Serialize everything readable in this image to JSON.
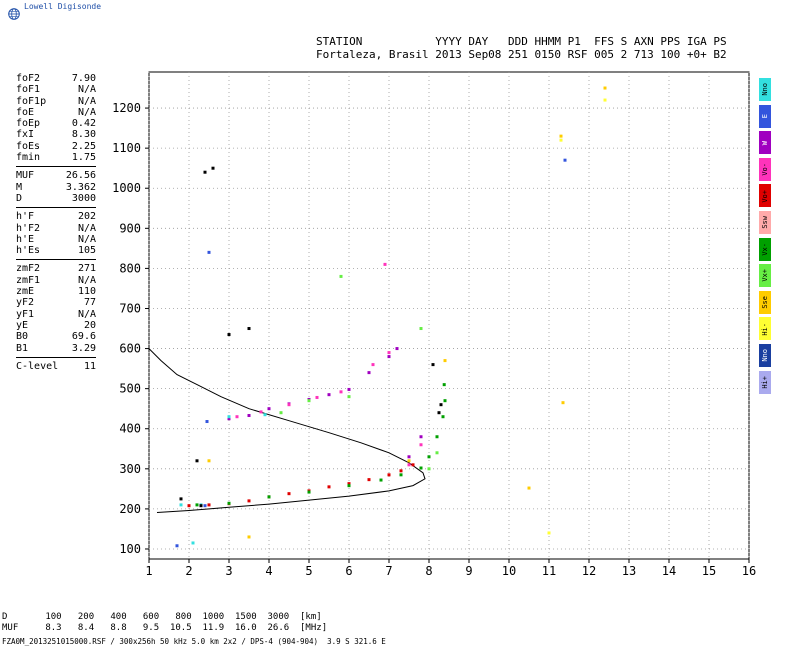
{
  "app": {
    "logo_text": "Lowell Digisonde",
    "logo_icon": "globe-icon"
  },
  "header": {
    "line1": "STATION           YYYY DAY   DDD HHMM P1  FFS S AXN PPS IGA PS",
    "line2": "Fortaleza, Brasil 2013 Sep08 251 0150 RSF 005 2 713 100 +0+ B2"
  },
  "params": [
    [
      {
        "k": "foF2",
        "v": "7.90"
      },
      {
        "k": "foF1",
        "v": "N/A"
      },
      {
        "k": "foF1p",
        "v": "N/A"
      },
      {
        "k": "foE",
        "v": "N/A"
      },
      {
        "k": "foEp",
        "v": "0.42"
      },
      {
        "k": "fxI",
        "v": "8.30"
      },
      {
        "k": "foEs",
        "v": "2.25"
      },
      {
        "k": "fmin",
        "v": "1.75"
      }
    ],
    [
      {
        "k": "MUF",
        "v": "26.56"
      },
      {
        "k": "M",
        "v": "3.362"
      },
      {
        "k": "D",
        "v": "3000"
      }
    ],
    [
      {
        "k": "h'F",
        "v": "202"
      },
      {
        "k": "h'F2",
        "v": "N/A"
      },
      {
        "k": "h'E",
        "v": "N/A"
      },
      {
        "k": "h'Es",
        "v": "105"
      }
    ],
    [
      {
        "k": "zmF2",
        "v": "271"
      },
      {
        "k": "zmF1",
        "v": "N/A"
      },
      {
        "k": "zmE",
        "v": "110"
      },
      {
        "k": "yF2",
        "v": "77"
      },
      {
        "k": "yF1",
        "v": "N/A"
      },
      {
        "k": "yE",
        "v": "20"
      },
      {
        "k": "B0",
        "v": "69.6"
      },
      {
        "k": "B1",
        "v": "3.29"
      }
    ],
    [
      {
        "k": "C-level",
        "v": "11"
      }
    ]
  ],
  "legend": [
    {
      "label": "Nno",
      "color": "#33e0e0"
    },
    {
      "label": "E",
      "color": "#3355dd"
    },
    {
      "label": "W",
      "color": "#a000c0"
    },
    {
      "label": "Vo-",
      "color": "#ff33bb"
    },
    {
      "label": "Vo+",
      "color": "#e00000"
    },
    {
      "label": "Ssw",
      "color": "#ffaaaa"
    },
    {
      "label": "Vx-",
      "color": "#00a000"
    },
    {
      "label": "Vx+",
      "color": "#66ee44"
    },
    {
      "label": "Sse",
      "color": "#ffcc00"
    },
    {
      "label": "Hi-",
      "color": "#ffff33"
    },
    {
      "label": "Nno",
      "color": "#1a3fa0"
    },
    {
      "label": "Hi+",
      "color": "#aaaaee"
    }
  ],
  "muf_table": {
    "d_label": "D",
    "d_values": [
      "100",
      "200",
      "400",
      "600",
      "800",
      "1000",
      "1500",
      "3000"
    ],
    "d_unit": "[km]",
    "m_label": "MUF",
    "m_values": [
      "8.3",
      "8.4",
      "8.8",
      "9.5",
      "10.5",
      "11.9",
      "16.0",
      "26.6"
    ],
    "m_unit": "[MHz]"
  },
  "footer": "FZA0M_2013251015000.RSF / 300x256h 50 kHz 5.0 km 2x2 / DPS-4 (904-904)  3.9 S 321.6 E",
  "chart_data": {
    "type": "scatter",
    "title": "",
    "xlabel": "",
    "ylabel": "",
    "xlim": [
      1,
      16
    ],
    "ylim": [
      75,
      1290
    ],
    "xticks": [
      1,
      2,
      3,
      4,
      5,
      6,
      7,
      8,
      9,
      10,
      11,
      12,
      13,
      14,
      15,
      16
    ],
    "yticks": [
      100,
      200,
      300,
      400,
      500,
      600,
      700,
      800,
      900,
      1000,
      1100,
      1200
    ],
    "grid": true,
    "profile": [
      [
        1,
        600
      ],
      [
        1.3,
        570
      ],
      [
        1.7,
        535
      ],
      [
        2.2,
        510
      ],
      [
        2.8,
        480
      ],
      [
        3.5,
        450
      ],
      [
        4.5,
        420
      ],
      [
        5.5,
        390
      ],
      [
        6.3,
        365
      ],
      [
        7,
        340
      ],
      [
        7.5,
        315
      ],
      [
        7.85,
        290
      ],
      [
        7.9,
        275
      ],
      [
        7.6,
        258
      ],
      [
        7,
        245
      ],
      [
        6,
        232
      ],
      [
        5,
        222
      ],
      [
        4,
        212
      ],
      [
        3,
        204
      ],
      [
        2,
        196
      ],
      [
        1.5,
        193
      ],
      [
        1.2,
        191
      ]
    ],
    "series": [
      {
        "color": "#e00000",
        "points": [
          [
            2.0,
            208
          ],
          [
            2.5,
            210
          ],
          [
            3,
            213
          ],
          [
            3.5,
            220
          ],
          [
            4,
            230
          ],
          [
            4.5,
            238
          ],
          [
            5,
            245
          ],
          [
            5.5,
            255
          ],
          [
            6,
            263
          ],
          [
            6.5,
            273
          ],
          [
            7,
            285
          ],
          [
            7.3,
            295
          ],
          [
            7.6,
            310
          ]
        ]
      },
      {
        "color": "#00a000",
        "points": [
          [
            2.2,
            210
          ],
          [
            3,
            214
          ],
          [
            4,
            230
          ],
          [
            5,
            242
          ],
          [
            6,
            258
          ],
          [
            6.8,
            272
          ],
          [
            7.3,
            285
          ],
          [
            7.8,
            302
          ],
          [
            8.0,
            330
          ],
          [
            8.2,
            380
          ],
          [
            8.35,
            430
          ],
          [
            8.4,
            470
          ],
          [
            8.38,
            510
          ]
        ]
      },
      {
        "color": "#a000c0",
        "points": [
          [
            3,
            425
          ],
          [
            3.5,
            433
          ],
          [
            4,
            450
          ],
          [
            4.5,
            462
          ],
          [
            5,
            473
          ],
          [
            5.5,
            485
          ],
          [
            6,
            498
          ],
          [
            6.5,
            540
          ],
          [
            7,
            580
          ],
          [
            7.2,
            600
          ],
          [
            7.5,
            330
          ],
          [
            7.8,
            380
          ]
        ]
      },
      {
        "color": "#ff33bb",
        "points": [
          [
            3.2,
            430
          ],
          [
            3.8,
            442
          ],
          [
            4.5,
            460
          ],
          [
            5.2,
            478
          ],
          [
            5.8,
            492
          ],
          [
            6.6,
            560
          ],
          [
            7,
            590
          ],
          [
            7.5,
            310
          ],
          [
            7.8,
            360
          ],
          [
            6.9,
            810
          ]
        ]
      },
      {
        "color": "#66ee44",
        "points": [
          [
            4.3,
            440
          ],
          [
            5,
            470
          ],
          [
            6,
            480
          ],
          [
            7.8,
            650
          ],
          [
            8.0,
            300
          ],
          [
            8.2,
            340
          ],
          [
            5.8,
            780
          ]
        ]
      },
      {
        "color": "#33e0e0",
        "points": [
          [
            1.8,
            210
          ],
          [
            2.1,
            115
          ],
          [
            2.3,
            210
          ],
          [
            3,
            430
          ],
          [
            3.9,
            435
          ]
        ]
      },
      {
        "color": "#3355dd",
        "points": [
          [
            1.7,
            108
          ],
          [
            2.4,
            208
          ],
          [
            2.45,
            418
          ],
          [
            2.5,
            840
          ],
          [
            11.4,
            1070
          ]
        ]
      },
      {
        "color": "#ffcc00",
        "points": [
          [
            2.5,
            320
          ],
          [
            3.5,
            130
          ],
          [
            7.5,
            320
          ],
          [
            8.4,
            570
          ],
          [
            10.5,
            252
          ],
          [
            11.3,
            1130
          ],
          [
            11.35,
            465
          ],
          [
            12.4,
            1250
          ]
        ]
      },
      {
        "color": "#ffff33",
        "points": [
          [
            11.3,
            1120
          ],
          [
            12.4,
            1220
          ],
          [
            11.0,
            140
          ]
        ]
      },
      {
        "color": "#000000",
        "points": [
          [
            1.8,
            225
          ],
          [
            2.3,
            208
          ],
          [
            2.4,
            1040
          ],
          [
            2.6,
            1050
          ],
          [
            3.5,
            650
          ],
          [
            3.0,
            635
          ],
          [
            8.25,
            440
          ],
          [
            8.3,
            460
          ],
          [
            8.1,
            560
          ],
          [
            2.2,
            320
          ]
        ]
      }
    ]
  }
}
